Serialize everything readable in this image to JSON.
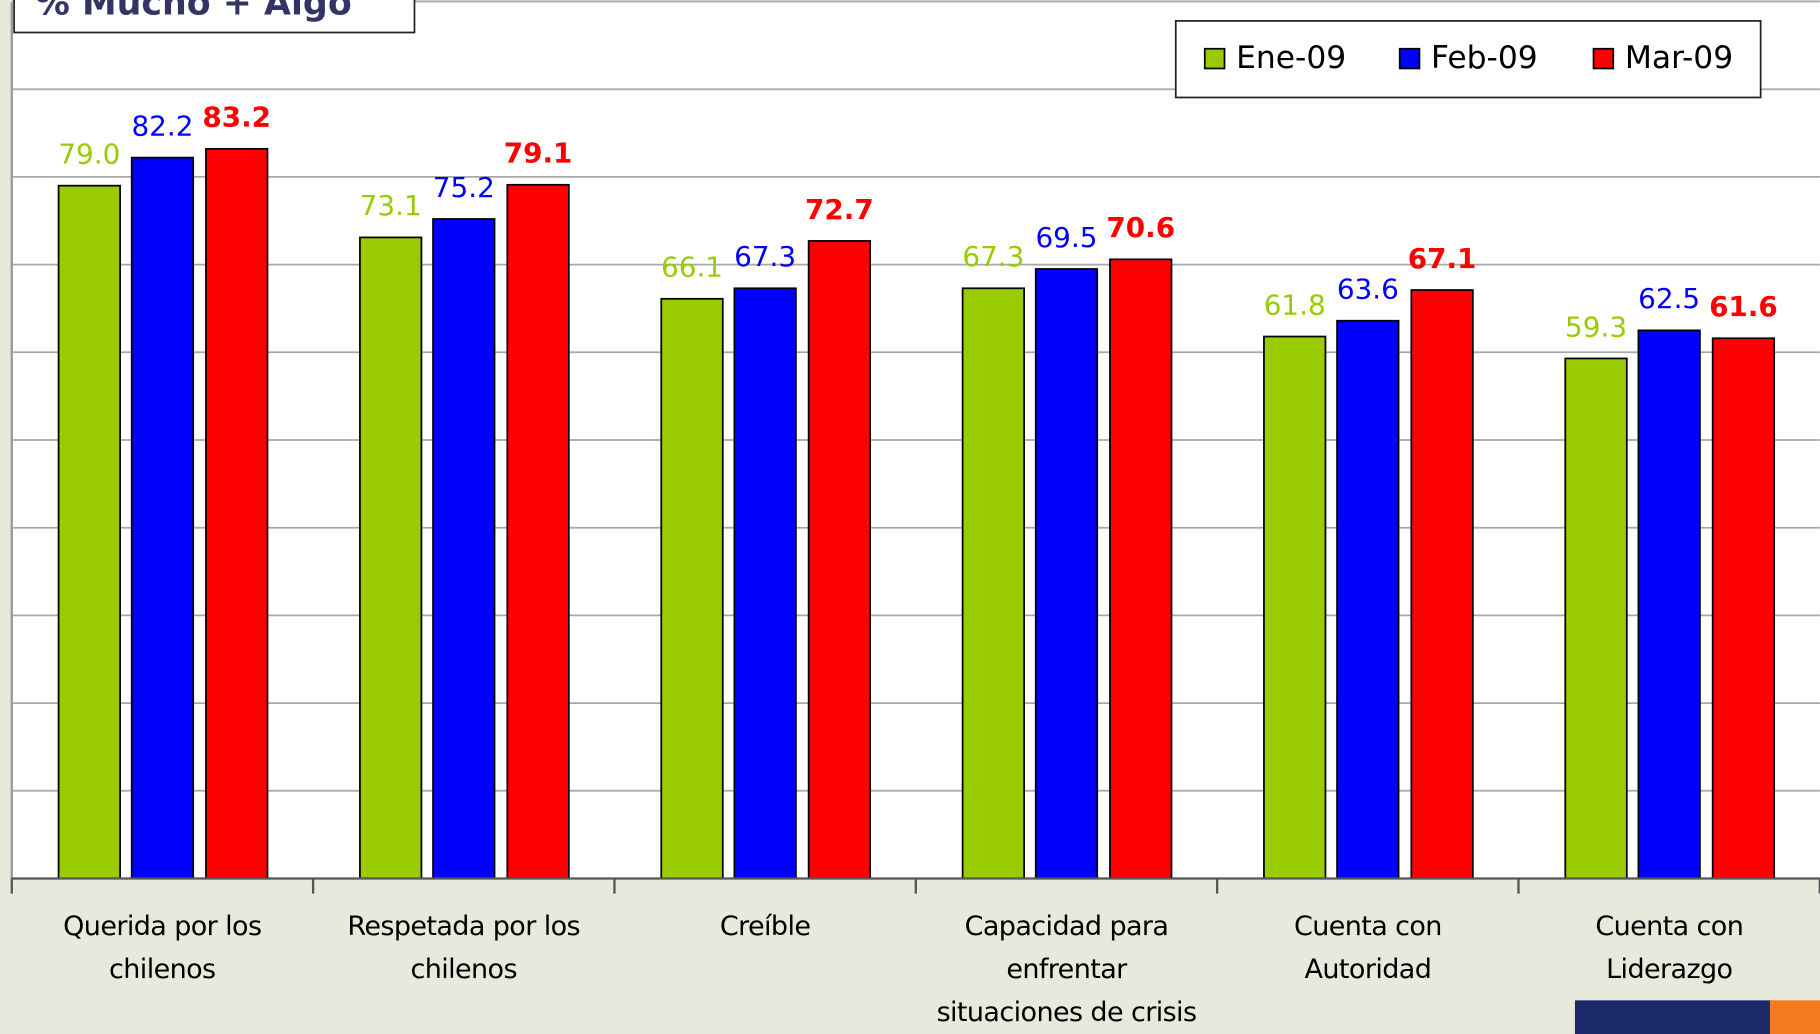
{
  "chart_data": {
    "type": "bar",
    "title": "% Mucho + Algo",
    "categories": [
      "Querida por los\nchilenos",
      "Respetada por los\nchilenos",
      "Creíble",
      "Capacidad para\nenfrentar\nsituaciones de crisis",
      "Cuenta con\nAutoridad",
      "Cuenta con\nLiderazgo"
    ],
    "series": [
      {
        "name": "Ene-09",
        "color": "#99cc00",
        "font_weight": "normal",
        "values": [
          79.0,
          73.1,
          66.1,
          67.3,
          61.8,
          59.3
        ],
        "value_labels": [
          "79.0",
          "73.1",
          "66.1",
          "67.3",
          "61.8",
          "59.3"
        ]
      },
      {
        "name": "Feb-09",
        "color": "#0000ff",
        "font_weight": "normal",
        "values": [
          82.2,
          75.2,
          67.3,
          69.5,
          63.6,
          62.5
        ],
        "value_labels": [
          "82.2",
          "75.2",
          "67.3",
          "69.5",
          "63.6",
          "62.5"
        ]
      },
      {
        "name": "Mar-09",
        "color": "#ff0000",
        "font_weight": "bold",
        "values": [
          83.2,
          79.1,
          72.7,
          70.6,
          67.1,
          61.6
        ],
        "value_labels": [
          "83.2",
          "79.1",
          "72.7",
          "70.6",
          "67.1",
          "61.6"
        ]
      }
    ],
    "ylim": [
      0,
      100
    ],
    "yticks": [
      0,
      10,
      20,
      30,
      40,
      50,
      60,
      70,
      80,
      90,
      100
    ],
    "grid": true,
    "legend": "top-right"
  }
}
